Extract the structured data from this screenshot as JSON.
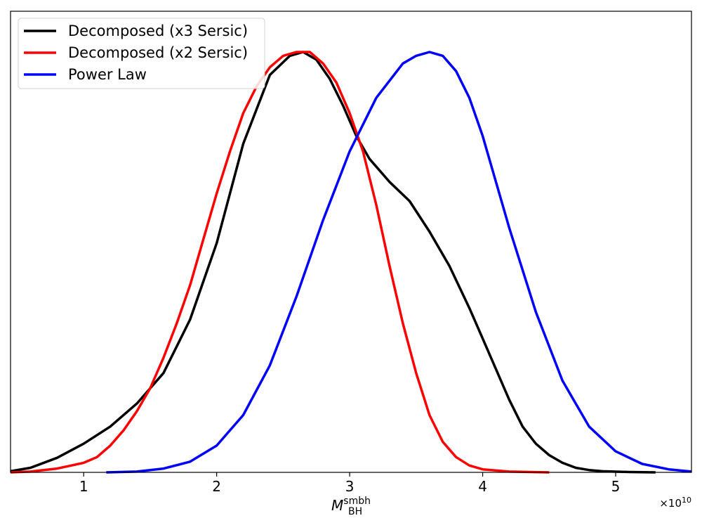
{
  "chart_data": {
    "type": "line",
    "title": "",
    "xlabel": "M",
    "xlabel_subscript": "BH",
    "xlabel_superscript": "smbh",
    "ylabel": "",
    "x_scale_offset": "×10",
    "x_scale_exponent": "10",
    "xlim": [
      0.45,
      5.57
    ],
    "ylim": [
      0,
      1.1
    ],
    "xticks": [
      1,
      2,
      3,
      4,
      5
    ],
    "xtick_labels": [
      "1",
      "2",
      "3",
      "4",
      "5"
    ],
    "yticks_visible": false,
    "grid": false,
    "legend_position": "top-left",
    "series": [
      {
        "name": "Decomposed (x3 Sersic)",
        "color": "#000000",
        "points": [
          [
            0.45,
            0.003
          ],
          [
            0.6,
            0.012
          ],
          [
            0.8,
            0.038
          ],
          [
            1.0,
            0.075
          ],
          [
            1.2,
            0.12
          ],
          [
            1.4,
            0.18
          ],
          [
            1.6,
            0.26
          ],
          [
            1.8,
            0.4
          ],
          [
            2.0,
            0.6
          ],
          [
            2.2,
            0.86
          ],
          [
            2.4,
            1.04
          ],
          [
            2.55,
            1.09
          ],
          [
            2.65,
            1.1
          ],
          [
            2.75,
            1.08
          ],
          [
            2.85,
            1.03
          ],
          [
            2.95,
            0.96
          ],
          [
            3.05,
            0.88
          ],
          [
            3.15,
            0.82
          ],
          [
            3.3,
            0.76
          ],
          [
            3.45,
            0.71
          ],
          [
            3.6,
            0.63
          ],
          [
            3.75,
            0.54
          ],
          [
            3.9,
            0.43
          ],
          [
            4.0,
            0.35
          ],
          [
            4.1,
            0.27
          ],
          [
            4.2,
            0.19
          ],
          [
            4.3,
            0.12
          ],
          [
            4.4,
            0.075
          ],
          [
            4.5,
            0.045
          ],
          [
            4.6,
            0.025
          ],
          [
            4.7,
            0.012
          ],
          [
            4.8,
            0.006
          ],
          [
            4.9,
            0.003
          ],
          [
            5.1,
            0.001
          ],
          [
            5.3,
            0.0
          ]
        ]
      },
      {
        "name": "Decomposed (x2 Sersic)",
        "color": "#ff0000",
        "points": [
          [
            0.45,
            0.0
          ],
          [
            0.6,
            0.002
          ],
          [
            0.8,
            0.01
          ],
          [
            1.0,
            0.025
          ],
          [
            1.1,
            0.04
          ],
          [
            1.2,
            0.07
          ],
          [
            1.3,
            0.11
          ],
          [
            1.4,
            0.16
          ],
          [
            1.5,
            0.22
          ],
          [
            1.6,
            0.3
          ],
          [
            1.7,
            0.39
          ],
          [
            1.8,
            0.49
          ],
          [
            1.9,
            0.61
          ],
          [
            2.0,
            0.73
          ],
          [
            2.1,
            0.84
          ],
          [
            2.2,
            0.94
          ],
          [
            2.3,
            1.01
          ],
          [
            2.4,
            1.06
          ],
          [
            2.5,
            1.09
          ],
          [
            2.6,
            1.1
          ],
          [
            2.7,
            1.1
          ],
          [
            2.8,
            1.07
          ],
          [
            2.9,
            1.02
          ],
          [
            3.0,
            0.94
          ],
          [
            3.1,
            0.84
          ],
          [
            3.2,
            0.7
          ],
          [
            3.3,
            0.54
          ],
          [
            3.4,
            0.39
          ],
          [
            3.5,
            0.26
          ],
          [
            3.6,
            0.15
          ],
          [
            3.7,
            0.08
          ],
          [
            3.8,
            0.04
          ],
          [
            3.9,
            0.018
          ],
          [
            4.0,
            0.008
          ],
          [
            4.2,
            0.002
          ],
          [
            4.5,
            0.0
          ]
        ]
      },
      {
        "name": "Power Law",
        "color": "#0000ff",
        "points": [
          [
            1.17,
            0.0
          ],
          [
            1.4,
            0.002
          ],
          [
            1.6,
            0.01
          ],
          [
            1.8,
            0.028
          ],
          [
            2.0,
            0.07
          ],
          [
            2.2,
            0.15
          ],
          [
            2.4,
            0.28
          ],
          [
            2.6,
            0.46
          ],
          [
            2.8,
            0.66
          ],
          [
            3.0,
            0.84
          ],
          [
            3.2,
            0.98
          ],
          [
            3.4,
            1.07
          ],
          [
            3.5,
            1.09
          ],
          [
            3.6,
            1.1
          ],
          [
            3.7,
            1.09
          ],
          [
            3.8,
            1.05
          ],
          [
            3.9,
            0.98
          ],
          [
            4.0,
            0.88
          ],
          [
            4.2,
            0.64
          ],
          [
            4.4,
            0.42
          ],
          [
            4.6,
            0.24
          ],
          [
            4.8,
            0.12
          ],
          [
            5.0,
            0.055
          ],
          [
            5.2,
            0.022
          ],
          [
            5.4,
            0.008
          ],
          [
            5.57,
            0.002
          ]
        ]
      }
    ]
  }
}
